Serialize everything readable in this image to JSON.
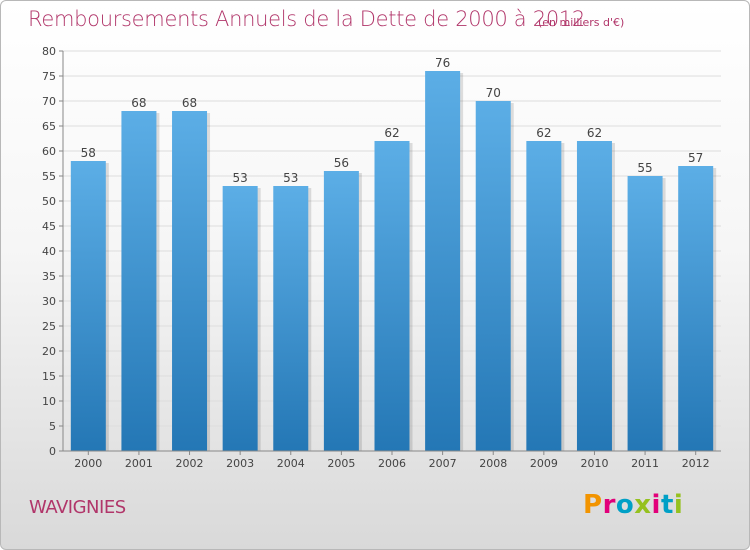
{
  "header": {
    "title": "Remboursements Annuels de la Dette de 2000 à 2012",
    "unit": "(en milliers d'€)"
  },
  "footer": {
    "commune": "WAVIGNIES",
    "logo": "Proxiti",
    "logo_colors": [
      "#f29400",
      "#e2007a",
      "#00a0c6",
      "#95c11f",
      "#e2007a",
      "#00a0c6",
      "#95c11f"
    ]
  },
  "colors": {
    "accent": "#b1366a",
    "bar_top": "#5caee6",
    "bar_bottom": "#2477b5",
    "grid": "#dddddd",
    "axis": "#888888"
  },
  "chart_data": {
    "type": "bar",
    "title": "Remboursements Annuels de la Dette de 2000 à 2012",
    "subtitle": "(en milliers d'€)",
    "xlabel": "",
    "ylabel": "",
    "categories": [
      "2000",
      "2001",
      "2002",
      "2003",
      "2004",
      "2005",
      "2006",
      "2007",
      "2008",
      "2009",
      "2010",
      "2011",
      "2012"
    ],
    "values": [
      58,
      68,
      68,
      53,
      53,
      56,
      62,
      76,
      70,
      62,
      62,
      55,
      57
    ],
    "ylim": [
      0,
      80
    ],
    "ytick_step": 5,
    "grid": true,
    "legend": "none"
  }
}
